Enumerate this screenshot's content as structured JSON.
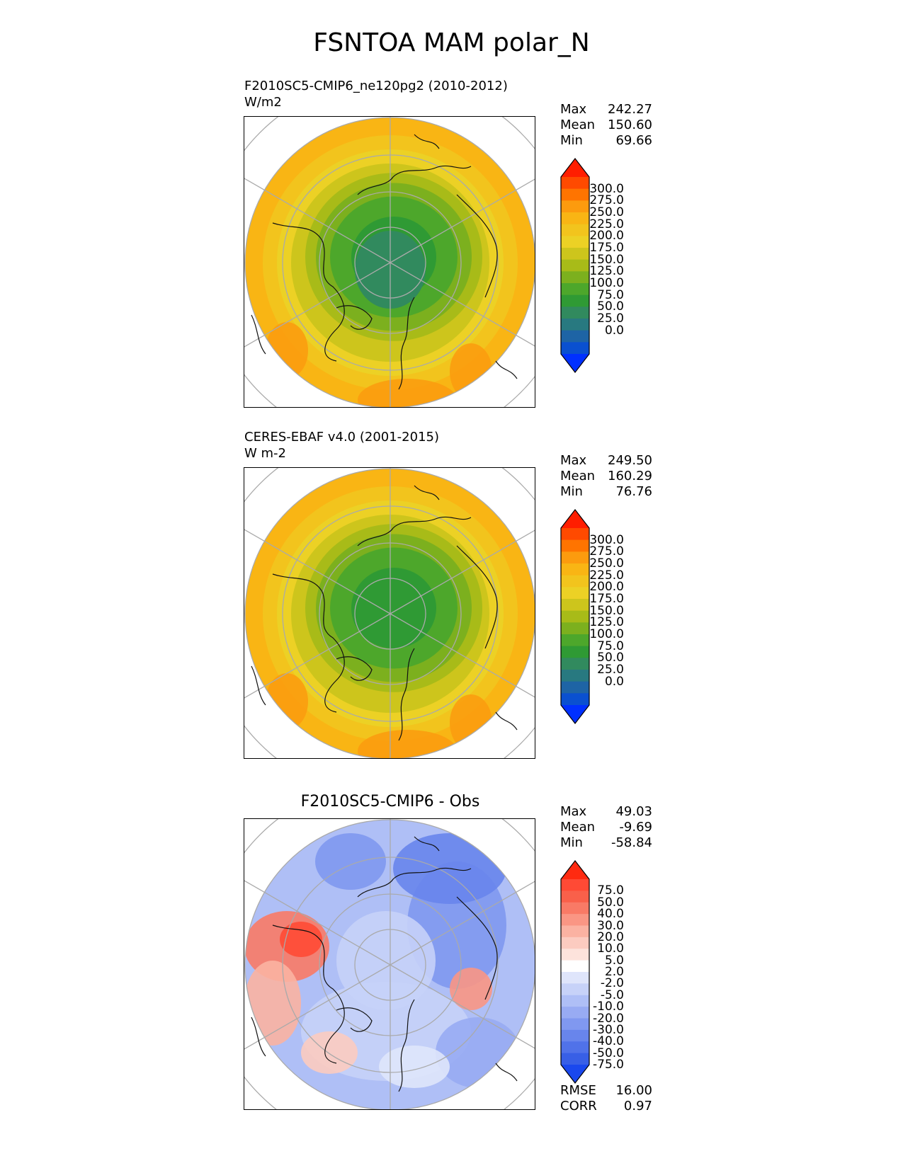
{
  "title": "FSNTOA MAM polar_N",
  "panels": [
    {
      "id": "test",
      "label_line1": "F2010SC5-CMIP6_ne120pg2 (2010-2012)",
      "label_line2": "W/m2",
      "stats": {
        "max_label": "Max",
        "max": "242.27",
        "mean_label": "Mean",
        "mean": "150.60",
        "min_label": "Min",
        "min": "69.66"
      },
      "colorbar_labels": [
        "300.0",
        "275.0",
        "250.0",
        "225.0",
        "200.0",
        "175.0",
        "150.0",
        "125.0",
        "100.0",
        "75.0",
        "50.0",
        "25.0",
        "0.0"
      ],
      "colors": [
        "#ff1e00",
        "#ff4a00",
        "#ff7400",
        "#fc9b0e",
        "#f9b514",
        "#f2c41d",
        "#ecd125",
        "#cdc51c",
        "#a8bb18",
        "#7cb01e",
        "#4da72b",
        "#2f9a34",
        "#318a5e",
        "#287980",
        "#1e64a5",
        "#0a50d0",
        "#0030ff"
      ],
      "extremes": {
        "top": "#ff1e00",
        "bottom": "#0030ff"
      }
    },
    {
      "id": "ref",
      "label_line1": "CERES-EBAF v4.0 (2001-2015)",
      "label_line2": "W m-2",
      "stats": {
        "max_label": "Max",
        "max": "249.50",
        "mean_label": "Mean",
        "mean": "160.29",
        "min_label": "Min",
        "min": "76.76"
      },
      "colorbar_labels": [
        "300.0",
        "275.0",
        "250.0",
        "225.0",
        "200.0",
        "175.0",
        "150.0",
        "125.0",
        "100.0",
        "75.0",
        "50.0",
        "25.0",
        "0.0"
      ],
      "colors": [
        "#ff1e00",
        "#ff4a00",
        "#ff7400",
        "#fc9b0e",
        "#f9b514",
        "#f2c41d",
        "#ecd125",
        "#cdc51c",
        "#a8bb18",
        "#7cb01e",
        "#4da72b",
        "#2f9a34",
        "#318a5e",
        "#287980",
        "#1e64a5",
        "#0a50d0",
        "#0030ff"
      ]
    },
    {
      "id": "diff",
      "title": "F2010SC5-CMIP6 - Obs",
      "stats": {
        "max_label": "Max",
        "max": "49.03",
        "mean_label": "Mean",
        "mean": "-9.69",
        "min_label": "Min",
        "min": "-58.84"
      },
      "colorbar_labels": [
        "75.0",
        "50.0",
        "40.0",
        "30.0",
        "20.0",
        "10.0",
        "5.0",
        "2.0",
        "-2.0",
        "-5.0",
        "-10.0",
        "-20.0",
        "-30.0",
        "-40.0",
        "-50.0",
        "-75.0"
      ],
      "colors": [
        "#ff2a10",
        "#ff4a35",
        "#f9604a",
        "#f97a66",
        "#fa9684",
        "#fbb2a2",
        "#fccbc0",
        "#fde3dc",
        "#ffffff",
        "#dfe5fb",
        "#c7d2f8",
        "#afbff6",
        "#98abf3",
        "#8098f0",
        "#6885ec",
        "#5072e9",
        "#385fe6",
        "#1a48ee"
      ],
      "rmse_label": "RMSE",
      "rmse": "16.00",
      "corr_label": "CORR",
      "corr": "0.97"
    }
  ]
}
